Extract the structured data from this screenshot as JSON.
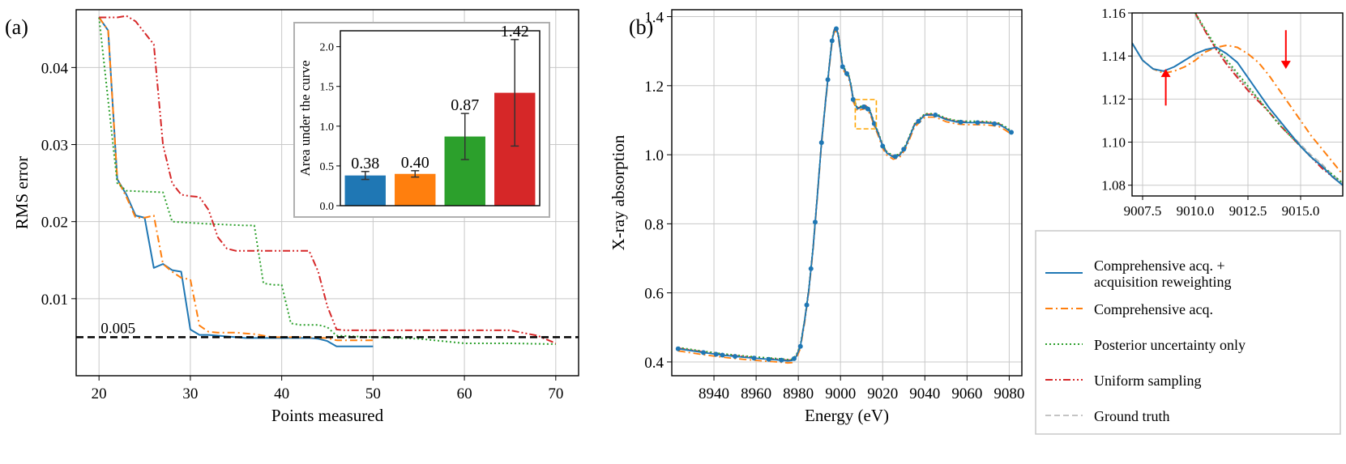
{
  "panel_labels": {
    "a": "(a)",
    "b": "(b)"
  },
  "colors": {
    "comprehensive_reweighting": "#1f77b4",
    "comprehensive": "#ff7f0e",
    "posterior": "#2ca02c",
    "uniform": "#d62728",
    "ground_truth": "#b0b0b0",
    "threshold": "#000000",
    "arrow": "#ff0000",
    "zoom_box": "#ffa500"
  },
  "legend": {
    "placement": "right, below inset",
    "entries": [
      {
        "key": "comprehensive_reweighting",
        "label_lines": [
          "Comprehensive acq. +",
          "acquisition reweighting"
        ],
        "style": "solid"
      },
      {
        "key": "comprehensive",
        "label_lines": [
          "Comprehensive acq."
        ],
        "style": "dashdot"
      },
      {
        "key": "posterior",
        "label_lines": [
          "Posterior uncertainty only"
        ],
        "style": "dotted"
      },
      {
        "key": "uniform",
        "label_lines": [
          "Uniform sampling"
        ],
        "style": "dashdotdot"
      },
      {
        "key": "ground_truth",
        "label_lines": [
          "Ground truth"
        ],
        "style": "dashed"
      }
    ]
  },
  "chart_data": [
    {
      "id": "rms",
      "type": "line",
      "xlabel": "Points measured",
      "ylabel": "RMS error",
      "xlim": [
        17.5,
        72.5
      ],
      "ylim": [
        0.0,
        0.0475
      ],
      "xticks": [
        20,
        30,
        40,
        50,
        60,
        70
      ],
      "yticks": [
        0.01,
        0.02,
        0.03,
        0.04
      ],
      "grid": true,
      "threshold": {
        "value": 0.005,
        "label": "0.005"
      },
      "series": [
        {
          "key": "comprehensive_reweighting",
          "style": "solid",
          "x": [
            20,
            21,
            22,
            23,
            24,
            25,
            26,
            27,
            28,
            29,
            30,
            31,
            32,
            33,
            34,
            35,
            36,
            37,
            38,
            39,
            40,
            41,
            42,
            43,
            44,
            45,
            46,
            47,
            48,
            49,
            50
          ],
          "y": [
            0.0465,
            0.0448,
            0.0255,
            0.0235,
            0.0208,
            0.0205,
            0.014,
            0.0145,
            0.0137,
            0.0135,
            0.006,
            0.0053,
            0.0053,
            0.0052,
            0.0051,
            0.005,
            0.0049,
            0.0049,
            0.0049,
            0.0049,
            0.0049,
            0.0049,
            0.0049,
            0.0049,
            0.0048,
            0.0045,
            0.0038,
            0.0038,
            0.0038,
            0.0038,
            0.0038
          ]
        },
        {
          "key": "comprehensive",
          "style": "dashdot",
          "x": [
            20,
            21,
            22,
            23,
            24,
            25,
            26,
            27,
            28,
            29,
            30,
            31,
            32,
            33,
            34,
            35,
            36,
            37,
            38,
            39,
            40,
            41,
            42,
            43,
            44,
            45,
            46,
            47,
            48,
            49,
            50
          ],
          "y": [
            0.0465,
            0.0448,
            0.0255,
            0.0232,
            0.0205,
            0.0205,
            0.0208,
            0.0145,
            0.0135,
            0.0127,
            0.0125,
            0.0065,
            0.0057,
            0.0056,
            0.0056,
            0.0056,
            0.0055,
            0.0054,
            0.0052,
            0.005,
            0.005,
            0.005,
            0.005,
            0.005,
            0.0049,
            0.0049,
            0.0046,
            0.0046,
            0.0046,
            0.0046,
            0.0046
          ]
        },
        {
          "key": "posterior",
          "style": "dotted",
          "x": [
            20,
            22,
            23,
            27,
            28,
            32,
            36,
            37,
            38,
            39,
            40,
            41,
            42,
            43,
            44,
            45,
            46,
            50,
            55,
            60,
            65,
            70
          ],
          "y": [
            0.0465,
            0.025,
            0.024,
            0.0238,
            0.02,
            0.0197,
            0.0195,
            0.0195,
            0.012,
            0.0118,
            0.0118,
            0.0068,
            0.0066,
            0.0066,
            0.0066,
            0.0063,
            0.0052,
            0.005,
            0.0048,
            0.0042,
            0.0042,
            0.0041
          ]
        },
        {
          "key": "uniform",
          "style": "dashdotdot",
          "x": [
            20,
            21,
            22,
            23,
            24,
            25,
            26,
            27,
            28,
            29,
            30,
            31,
            32,
            33,
            34,
            35,
            36,
            37,
            38,
            39,
            40,
            41,
            42,
            43,
            44,
            45,
            46,
            47,
            48,
            49,
            50,
            55,
            60,
            65,
            68,
            70
          ],
          "y": [
            0.0465,
            0.0465,
            0.0465,
            0.0467,
            0.046,
            0.0445,
            0.043,
            0.03,
            0.025,
            0.0235,
            0.0233,
            0.0232,
            0.0215,
            0.018,
            0.0165,
            0.0162,
            0.0162,
            0.0162,
            0.0162,
            0.0162,
            0.0162,
            0.0162,
            0.0162,
            0.0162,
            0.0135,
            0.009,
            0.006,
            0.0059,
            0.0059,
            0.0059,
            0.0059,
            0.0059,
            0.0059,
            0.0059,
            0.0052,
            0.0042
          ]
        }
      ]
    },
    {
      "id": "auc",
      "type": "bar",
      "ylabel": "Area under the curve",
      "ylim": [
        0.0,
        2.2
      ],
      "yticks": [
        "0.0",
        "0.5",
        "1.0",
        "1.5",
        "2.0"
      ],
      "values": [
        0.38,
        0.4,
        0.87,
        1.42
      ],
      "labels": [
        "0.38",
        "0.40",
        "0.87",
        "1.42"
      ],
      "errors": [
        0.05,
        0.04,
        0.29,
        0.67
      ],
      "series_keys": [
        "comprehensive_reweighting",
        "comprehensive",
        "posterior",
        "uniform"
      ]
    },
    {
      "id": "xanes",
      "type": "line",
      "xlabel": "Energy (eV)",
      "ylabel": "X-ray absorption",
      "xlim": [
        8920,
        9086
      ],
      "ylim": [
        0.36,
        1.42
      ],
      "xticks": [
        8940,
        8960,
        8980,
        9000,
        9020,
        9040,
        9060,
        9080
      ],
      "yticks": [
        "0.4",
        "0.6",
        "0.8",
        "1.0",
        "1.2",
        "1.4"
      ],
      "grid": true,
      "zoom_box": {
        "x": [
          9007,
          9017
        ],
        "y": [
          1.075,
          1.16
        ]
      },
      "curve": {
        "x": [
          8923,
          8935,
          8945,
          8955,
          8965,
          8972,
          8975,
          8977,
          8979,
          8981,
          8983,
          8985,
          8987,
          8989,
          8991,
          8993,
          8995,
          8996,
          8997,
          8998,
          8999,
          9000,
          9001,
          9002,
          9003,
          9004,
          9005,
          9006,
          9008,
          9010,
          9012,
          9014,
          9016,
          9018,
          9020,
          9022,
          9025,
          9028,
          9031,
          9035,
          9040,
          9045,
          9050,
          9055,
          9060,
          9065,
          9070,
          9075,
          9078,
          9081
        ],
        "y": [
          0.438,
          0.427,
          0.419,
          0.413,
          0.408,
          0.405,
          0.403,
          0.404,
          0.415,
          0.445,
          0.52,
          0.61,
          0.73,
          0.88,
          1.035,
          1.16,
          1.275,
          1.33,
          1.36,
          1.365,
          1.345,
          1.3,
          1.255,
          1.245,
          1.235,
          1.225,
          1.2,
          1.16,
          1.133,
          1.137,
          1.14,
          1.125,
          1.09,
          1.06,
          1.025,
          1.005,
          0.993,
          0.998,
          1.025,
          1.085,
          1.115,
          1.115,
          1.102,
          1.095,
          1.093,
          1.093,
          1.092,
          1.088,
          1.078,
          1.065
        ]
      },
      "offsets": {
        "comprehensive_reweighting": 0.0,
        "comprehensive": -0.006,
        "posterior": 0.004,
        "uniform": 0.002,
        "ground_truth": 0.0
      },
      "markers_x": [
        8923,
        8935,
        8941,
        8944,
        8950,
        8959,
        8966,
        8972,
        8978,
        8981,
        8984,
        8986,
        8988,
        8991,
        8994,
        8996,
        8998,
        9001,
        9003,
        9006,
        9011,
        9013,
        9016,
        9020,
        9026,
        9030,
        9037,
        9045,
        9057,
        9065,
        9073,
        9081
      ]
    },
    {
      "id": "zoom",
      "type": "line",
      "xlim": [
        9007,
        9017
      ],
      "ylim": [
        1.075,
        1.16
      ],
      "xticks": [
        "9007.5",
        "9010.0",
        "9012.5",
        "9015.0"
      ],
      "yticks": [
        "1.08",
        "1.10",
        "1.12",
        "1.14",
        "1.16"
      ],
      "grid": true,
      "series": [
        {
          "key": "comprehensive_reweighting",
          "style": "solid",
          "x": [
            9007,
            9007.5,
            9008,
            9008.5,
            9009,
            9009.5,
            9010,
            9010.5,
            9011,
            9011.5,
            9012,
            9012.5,
            9013,
            9013.5,
            9014,
            9014.5,
            9015,
            9015.5,
            9016,
            9016.5,
            9017
          ],
          "y": [
            1.146,
            1.138,
            1.134,
            1.133,
            1.135,
            1.138,
            1.141,
            1.143,
            1.144,
            1.141,
            1.137,
            1.13,
            1.123,
            1.116,
            1.11,
            1.104,
            1.098,
            1.093,
            1.089,
            1.084,
            1.08
          ]
        },
        {
          "key": "comprehensive",
          "style": "dashdot",
          "x": [
            9007,
            9007.5,
            9008,
            9008.5,
            9009,
            9009.5,
            9010,
            9010.5,
            9011,
            9011.5,
            9012,
            9012.5,
            9013,
            9013.5,
            9014,
            9014.5,
            9015,
            9015.5,
            9016,
            9016.5,
            9017
          ],
          "y": [
            1.146,
            1.138,
            1.134,
            1.132,
            1.133,
            1.135,
            1.138,
            1.142,
            1.144,
            1.145,
            1.144,
            1.141,
            1.137,
            1.131,
            1.124,
            1.117,
            1.11,
            1.103,
            1.097,
            1.091,
            1.085
          ]
        },
        {
          "key": "posterior",
          "style": "dotted",
          "x": [
            9010,
            9010.5,
            9011,
            9011.5,
            9012,
            9012.5,
            9013,
            9013.5,
            9014,
            9014.5,
            9015,
            9015.5,
            9016,
            9016.5,
            9017
          ],
          "y": [
            1.16,
            1.152,
            1.144,
            1.138,
            1.132,
            1.126,
            1.12,
            1.114,
            1.108,
            1.103,
            1.098,
            1.093,
            1.089,
            1.085,
            1.081
          ]
        },
        {
          "key": "uniform",
          "style": "dashdotdot",
          "x": [
            9010,
            9010.5,
            9011,
            9011.5,
            9012,
            9012.5,
            9013,
            9013.5,
            9014,
            9014.5,
            9015,
            9015.5,
            9016,
            9016.5,
            9017
          ],
          "y": [
            1.16,
            1.151,
            1.143,
            1.136,
            1.13,
            1.124,
            1.119,
            1.114,
            1.108,
            1.103,
            1.098,
            1.093,
            1.088,
            1.084,
            1.08
          ]
        },
        {
          "key": "ground_truth",
          "style": "dashed",
          "x": [
            9010,
            9010.5,
            9011,
            9011.5,
            9012,
            9012.5,
            9013,
            9013.5,
            9014,
            9014.5,
            9015,
            9015.5,
            9016,
            9016.5,
            9017
          ],
          "y": [
            1.159,
            1.151,
            1.143,
            1.137,
            1.131,
            1.125,
            1.12,
            1.114,
            1.109,
            1.104,
            1.099,
            1.094,
            1.09,
            1.085,
            1.081
          ]
        }
      ],
      "arrows": [
        {
          "direction": "up",
          "x": 9008.6,
          "y_tail": 1.117,
          "y_head": 1.134
        },
        {
          "direction": "down",
          "x": 9014.3,
          "y_tail": 1.152,
          "y_head": 1.134
        }
      ]
    }
  ]
}
